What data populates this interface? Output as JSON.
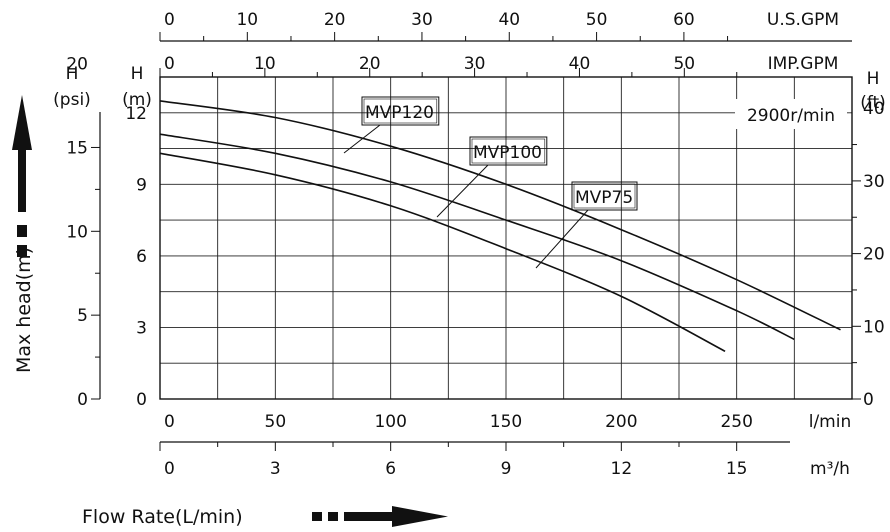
{
  "chart_data": {
    "type": "line",
    "x_label": "l/min",
    "x_range": [
      0,
      300
    ],
    "y_range_m": [
      0,
      13.5
    ],
    "grid": true,
    "x_ticks": [
      "0",
      "50",
      "100",
      "150",
      "200",
      "250"
    ],
    "y_ticks_m": [
      "0",
      "3",
      "6",
      "9",
      "12"
    ],
    "y_label_m": "H\n(m)",
    "psi_axis": {
      "label": "H\n(psi)",
      "ticks": [
        "0",
        "5",
        "10",
        "15",
        "20"
      ],
      "values": [
        0,
        5,
        10,
        15,
        20
      ]
    },
    "ft_axis": {
      "label": "H\n(ft)",
      "ticks": [
        "0",
        "10",
        "20",
        "30",
        "40"
      ],
      "values": [
        0,
        10,
        20,
        30,
        40
      ]
    },
    "usgpm_axis": {
      "label": "U.S.GPM",
      "ticks": [
        "0",
        "10",
        "20",
        "30",
        "40",
        "50",
        "60"
      ],
      "values": [
        0,
        10,
        20,
        30,
        40,
        50,
        60
      ]
    },
    "impgpm_axis": {
      "label": "IMP.GPM",
      "ticks": [
        "0",
        "10",
        "20",
        "30",
        "40",
        "50"
      ],
      "values": [
        0,
        10,
        20,
        30,
        40,
        50
      ]
    },
    "m3h_axis": {
      "label": "m³/h",
      "ticks": [
        "0",
        "3",
        "6",
        "9",
        "12",
        "15"
      ],
      "values": [
        0,
        3,
        6,
        9,
        12,
        15
      ]
    },
    "speed_label": "2900r/min",
    "series": [
      {
        "name": "MVP120",
        "x": [
          0,
          50,
          100,
          150,
          200,
          250,
          295
        ],
        "y": [
          12.5,
          11.8,
          10.6,
          9.0,
          7.1,
          5.0,
          2.9
        ]
      },
      {
        "name": "MVP100",
        "x": [
          0,
          50,
          100,
          150,
          200,
          250,
          275
        ],
        "y": [
          11.1,
          10.3,
          9.1,
          7.5,
          5.8,
          3.7,
          2.5
        ]
      },
      {
        "name": "MVP75",
        "x": [
          0,
          50,
          100,
          150,
          200,
          245
        ],
        "y": [
          10.3,
          9.4,
          8.1,
          6.3,
          4.3,
          2.0
        ]
      }
    ]
  },
  "side_labels": {
    "y_title": "Max head(m)",
    "x_title": "Flow Rate(L/min)"
  }
}
